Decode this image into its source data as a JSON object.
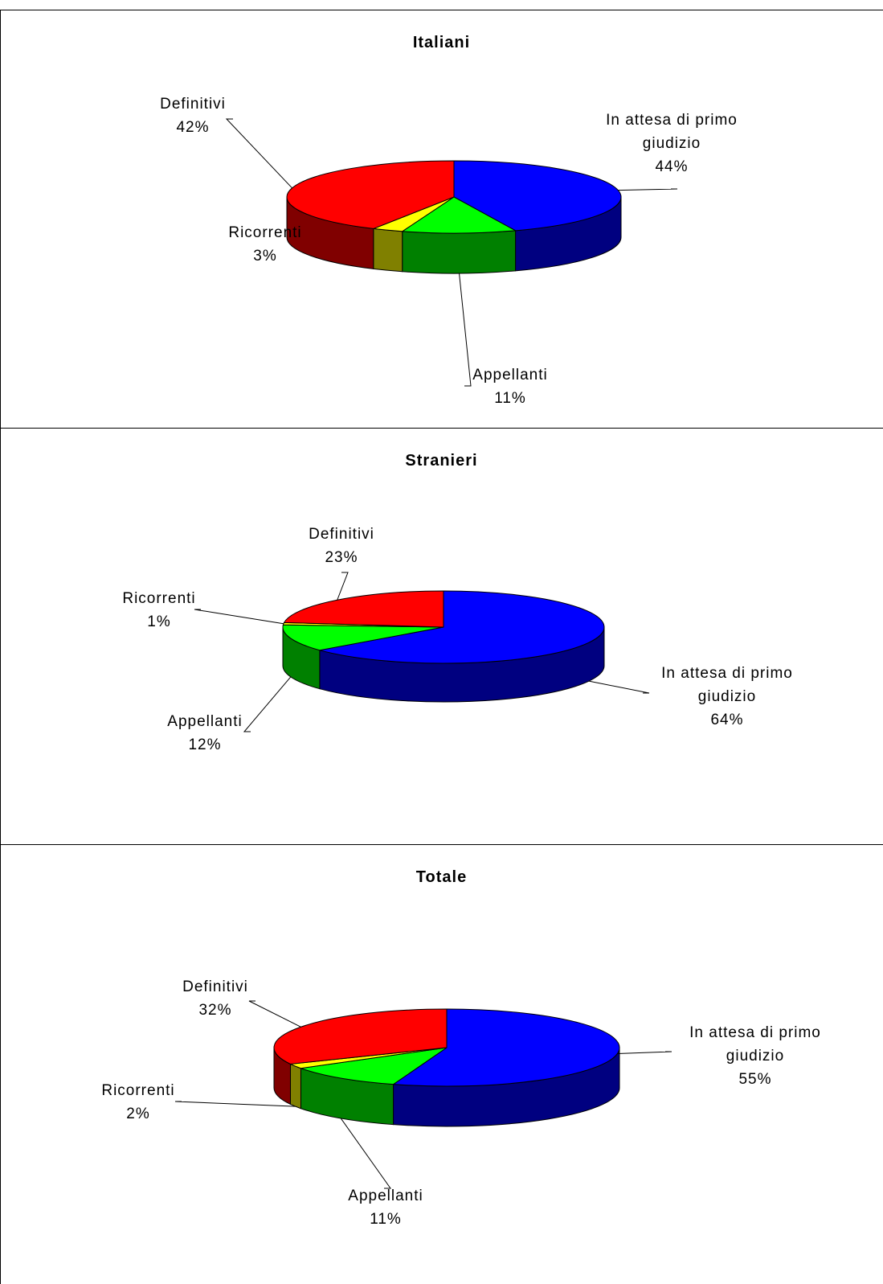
{
  "chart_data": [
    {
      "type": "pie",
      "title": "Italiani",
      "categories": [
        "In attesa di primo giudizio",
        "Appellanti",
        "Ricorrenti",
        "Definitivi"
      ],
      "values": [
        44,
        11,
        3,
        42
      ],
      "value_labels": [
        "44%",
        "11%",
        "3%",
        "42%"
      ],
      "colors": [
        "#0000ff",
        "#00ff00",
        "#ffff00",
        "#ff0000"
      ]
    },
    {
      "type": "pie",
      "title": "Stranieri",
      "categories": [
        "In attesa di primo giudizio",
        "Appellanti",
        "Ricorrenti",
        "Definitivi"
      ],
      "values": [
        64,
        12,
        1,
        23
      ],
      "value_labels": [
        "64%",
        "12%",
        "1%",
        "23%"
      ],
      "colors": [
        "#0000ff",
        "#00ff00",
        "#ffff00",
        "#ff0000"
      ]
    },
    {
      "type": "pie",
      "title": "Totale",
      "categories": [
        "In attesa di primo giudizio",
        "Appellanti",
        "Ricorrenti",
        "Definitivi"
      ],
      "values": [
        55,
        11,
        2,
        32
      ],
      "value_labels": [
        "55%",
        "11%",
        "2%",
        "32%"
      ],
      "colors": [
        "#0000ff",
        "#00ff00",
        "#ffff00",
        "#ff0000"
      ]
    }
  ]
}
